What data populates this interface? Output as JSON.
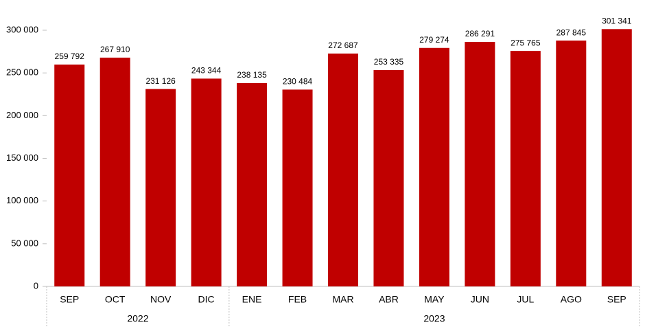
{
  "chart_data": {
    "type": "bar",
    "color": "#c00000",
    "groups": [
      {
        "label": "2022",
        "categories": [
          "SEP",
          "OCT",
          "NOV",
          "DIC"
        ]
      },
      {
        "label": "2023",
        "categories": [
          "ENE",
          "FEB",
          "MAR",
          "ABR",
          "MAY",
          "JUN",
          "JUL",
          "AGO",
          "SEP"
        ]
      }
    ],
    "values": [
      259792,
      267910,
      231126,
      243344,
      238135,
      230484,
      272687,
      253335,
      279274,
      286291,
      275765,
      287845,
      301341
    ],
    "value_labels": [
      "259 792",
      "267 910",
      "231 126",
      "243 344",
      "238 135",
      "230 484",
      "272 687",
      "253 335",
      "279 274",
      "286 291",
      "275 765",
      "287 845",
      "301 341"
    ],
    "ylim": [
      0,
      300000
    ],
    "yticks": [
      0,
      {
        "value": 50000,
        "label": "50 000"
      },
      {
        "value": 100000,
        "label": "100 000"
      },
      {
        "value": 150000,
        "label": "150 000"
      },
      {
        "value": 200000,
        "label": "200 000"
      },
      {
        "value": 250000,
        "label": "250 000"
      },
      {
        "value": 300000,
        "label": "300 000"
      }
    ]
  }
}
